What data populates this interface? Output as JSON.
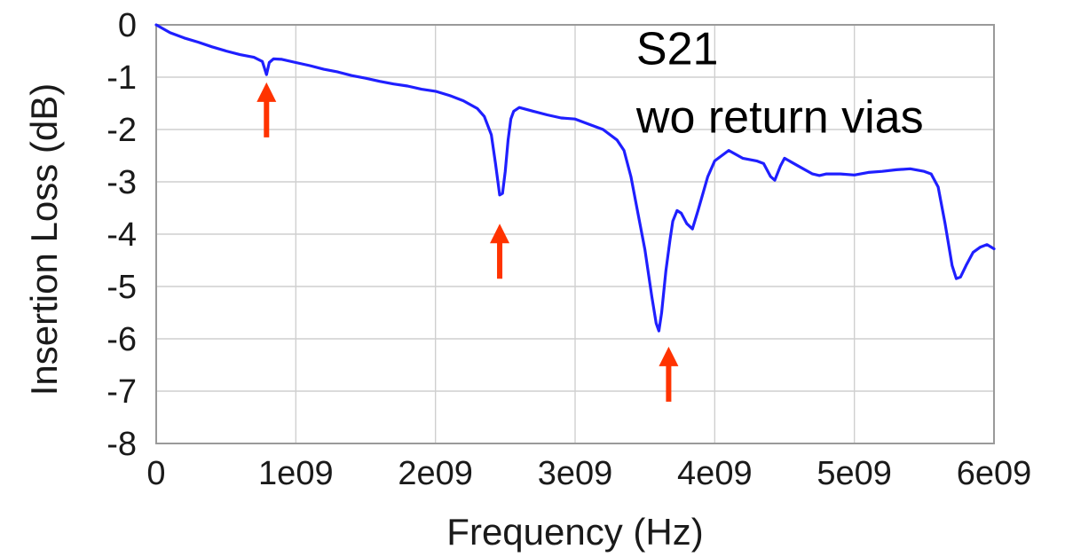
{
  "chart_data": {
    "type": "line",
    "title": "",
    "xlabel": "Frequency (Hz)",
    "ylabel": "Insertion Loss (dB)",
    "xlim": [
      0,
      6000000000
    ],
    "ylim": [
      -8,
      0
    ],
    "grid": true,
    "x_ticks": [
      0,
      1000000000,
      2000000000,
      3000000000,
      4000000000,
      5000000000,
      6000000000
    ],
    "x_tick_labels": [
      "0",
      "1e09",
      "2e09",
      "3e09",
      "4e09",
      "5e09",
      "6e09"
    ],
    "y_ticks": [
      0,
      -1,
      -2,
      -3,
      -4,
      -5,
      -6,
      -7,
      -8
    ],
    "y_tick_labels": [
      "0",
      "-1",
      "-2",
      "-3",
      "-4",
      "-5",
      "-6",
      "-7",
      "-8"
    ],
    "annotations": [
      {
        "text": "S21",
        "x": 3400000000,
        "y": -0.45
      },
      {
        "text": "wo return vias",
        "x": 3400000000,
        "y": -1.75
      }
    ],
    "markers": [
      {
        "type": "arrow-up",
        "x": 790000000,
        "y": -1.1
      },
      {
        "type": "arrow-up",
        "x": 2460000000,
        "y": -3.8
      },
      {
        "type": "arrow-up",
        "x": 3670000000,
        "y": -6.15
      }
    ],
    "colors": {
      "line": "#1f1fff",
      "arrow": "#ff3300",
      "grid": "#cfcfcf"
    },
    "series": [
      {
        "name": "",
        "x": [
          0,
          100000000,
          200000000,
          300000000,
          400000000,
          500000000,
          600000000,
          700000000,
          760000000,
          790000000,
          810000000,
          840000000,
          900000000,
          1000000000,
          1100000000,
          1200000000,
          1300000000,
          1400000000,
          1500000000,
          1600000000,
          1700000000,
          1800000000,
          1900000000,
          2000000000,
          2100000000,
          2200000000,
          2300000000,
          2350000000,
          2400000000,
          2430000000,
          2460000000,
          2480000000,
          2500000000,
          2520000000,
          2540000000,
          2560000000,
          2600000000,
          2700000000,
          2800000000,
          2900000000,
          3000000000,
          3100000000,
          3200000000,
          3300000000,
          3350000000,
          3400000000,
          3450000000,
          3500000000,
          3550000000,
          3580000000,
          3600000000,
          3620000000,
          3650000000,
          3680000000,
          3700000000,
          3730000000,
          3760000000,
          3800000000,
          3840000000,
          3880000000,
          3950000000,
          4000000000,
          4100000000,
          4200000000,
          4300000000,
          4350000000,
          4400000000,
          4430000000,
          4470000000,
          4500000000,
          4600000000,
          4700000000,
          4750000000,
          4800000000,
          4900000000,
          5000000000,
          5100000000,
          5200000000,
          5300000000,
          5400000000,
          5500000000,
          5550000000,
          5600000000,
          5650000000,
          5700000000,
          5730000000,
          5760000000,
          5800000000,
          5850000000,
          5900000000,
          5950000000,
          6000000000
        ],
        "y": [
          0,
          -0.15,
          -0.25,
          -0.33,
          -0.42,
          -0.5,
          -0.57,
          -0.62,
          -0.7,
          -0.95,
          -0.72,
          -0.65,
          -0.66,
          -0.72,
          -0.78,
          -0.85,
          -0.9,
          -0.97,
          -1.02,
          -1.08,
          -1.13,
          -1.17,
          -1.23,
          -1.27,
          -1.35,
          -1.45,
          -1.6,
          -1.75,
          -2.1,
          -2.65,
          -3.25,
          -3.22,
          -2.8,
          -2.2,
          -1.8,
          -1.65,
          -1.58,
          -1.65,
          -1.72,
          -1.78,
          -1.8,
          -1.9,
          -2.0,
          -2.2,
          -2.4,
          -2.9,
          -3.6,
          -4.3,
          -5.2,
          -5.7,
          -5.85,
          -5.5,
          -4.7,
          -4.1,
          -3.75,
          -3.55,
          -3.6,
          -3.8,
          -3.9,
          -3.55,
          -2.9,
          -2.6,
          -2.4,
          -2.55,
          -2.6,
          -2.65,
          -2.9,
          -2.97,
          -2.7,
          -2.55,
          -2.7,
          -2.85,
          -2.88,
          -2.85,
          -2.85,
          -2.87,
          -2.82,
          -2.8,
          -2.77,
          -2.75,
          -2.8,
          -2.85,
          -3.1,
          -3.8,
          -4.6,
          -4.85,
          -4.82,
          -4.6,
          -4.35,
          -4.25,
          -4.2,
          -4.28
        ]
      }
    ]
  }
}
